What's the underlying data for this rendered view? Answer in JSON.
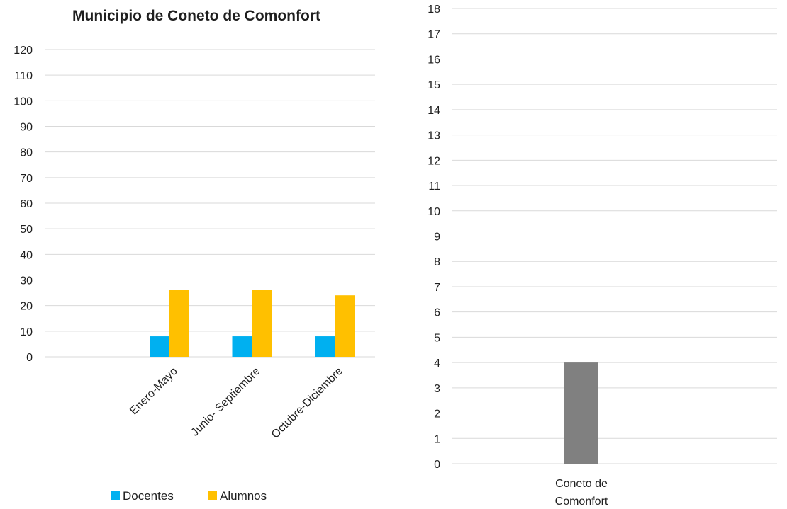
{
  "chart_data": [
    {
      "type": "bar",
      "title": "Municipio de Coneto de Comonfort",
      "categories": [
        "Enero-Mayo",
        "Junio- Septiembre",
        "Octubre-Diciembre"
      ],
      "series": [
        {
          "name": "Docentes",
          "values": [
            8,
            8,
            8
          ],
          "color": "#00b0f0"
        },
        {
          "name": "Alumnos",
          "values": [
            26,
            26,
            24
          ],
          "color": "#ffc000"
        }
      ],
      "ylim": [
        0,
        120
      ],
      "ystep": 10,
      "grid": true,
      "legend": "bottom"
    },
    {
      "type": "bar",
      "title": "",
      "categories": [
        "Coneto de Comonfort"
      ],
      "series": [
        {
          "values": [
            4
          ],
          "color": "#808080"
        }
      ],
      "ylim": [
        0,
        18
      ],
      "ystep": 1,
      "grid": true,
      "legend": "none"
    }
  ]
}
